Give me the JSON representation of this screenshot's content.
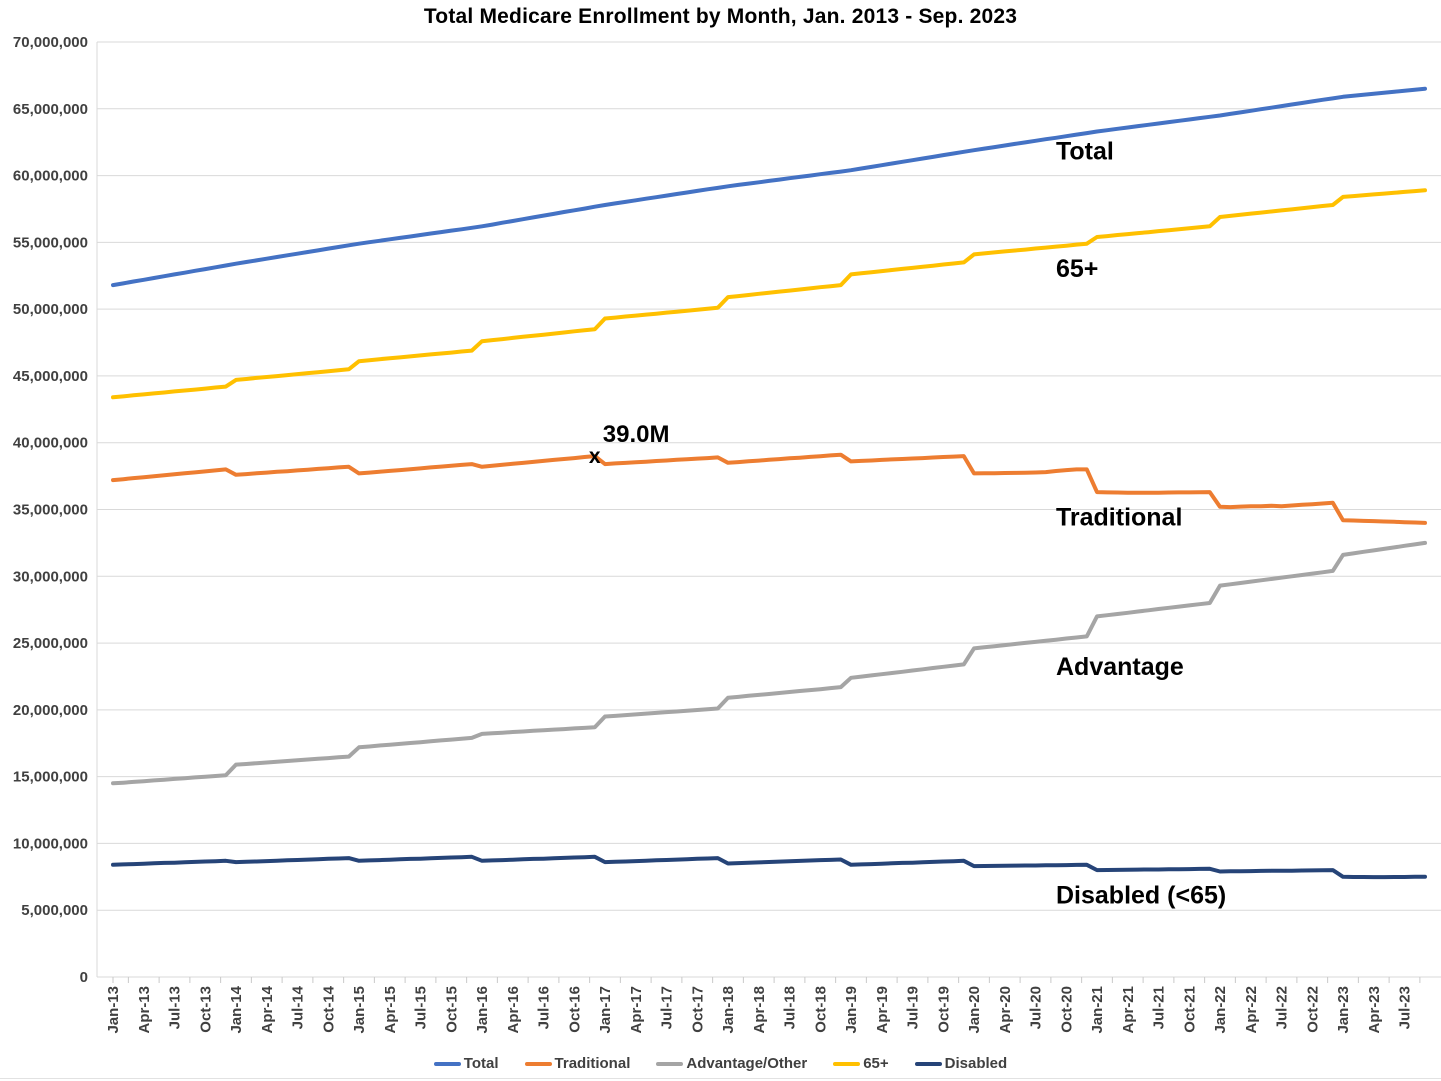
{
  "chart_data": {
    "type": "line",
    "title": "Total Medicare Enrollment by Month, Jan. 2013 - Sep. 2023",
    "values_unit": "millions",
    "x": {
      "start": "Jan-13",
      "end": "Sep-23",
      "frequency": "monthly",
      "points": 129
    },
    "x_tick_every_months": 3,
    "x_tick_labels": [
      "Jan-13",
      "Apr-13",
      "Jul-13",
      "Oct-13",
      "Jan-14",
      "Apr-14",
      "Jul-14",
      "Oct-14",
      "Jan-15",
      "Apr-15",
      "Jul-15",
      "Oct-15",
      "Jan-16",
      "Apr-16",
      "Jul-16",
      "Oct-16",
      "Jan-17",
      "Apr-17",
      "Jul-17",
      "Oct-17",
      "Jan-18",
      "Apr-18",
      "Jul-18",
      "Oct-18",
      "Jan-19",
      "Apr-19",
      "Jul-19",
      "Oct-19",
      "Jan-20",
      "Apr-20",
      "Jul-20",
      "Oct-20",
      "Jan-21",
      "Apr-21",
      "Jul-21",
      "Oct-21",
      "Jan-22",
      "Apr-22",
      "Jul-22",
      "Oct-22",
      "Jan-23",
      "Apr-23",
      "Jul-23"
    ],
    "ylim_millions": [
      0,
      70
    ],
    "ytick_step_millions": 5,
    "ytick_labels": [
      "0",
      "5,000,000",
      "10,000,000",
      "15,000,000",
      "20,000,000",
      "25,000,000",
      "30,000,000",
      "35,000,000",
      "40,000,000",
      "45,000,000",
      "50,000,000",
      "55,000,000",
      "60,000,000",
      "65,000,000",
      "70,000,000"
    ],
    "grid": "horizontal",
    "legend_position": "bottom",
    "colors": {
      "gridline": "#D9D9D9",
      "tick": "#C9C9C9",
      "axis_text": "#404040",
      "title_text": "#000000"
    },
    "series": [
      {
        "name": "Total",
        "color": "#4472C4",
        "values_millions": [
          51.8,
          51.93,
          52.07,
          52.2,
          52.33,
          52.47,
          52.6,
          52.73,
          52.87,
          53,
          53.13,
          53.27,
          53.4,
          53.53,
          53.65,
          53.78,
          53.9,
          54.03,
          54.15,
          54.28,
          54.4,
          54.53,
          54.65,
          54.78,
          54.9,
          55.01,
          55.12,
          55.23,
          55.33,
          55.44,
          55.55,
          55.66,
          55.77,
          55.88,
          55.98,
          56.09,
          56.2,
          56.33,
          56.47,
          56.6,
          56.73,
          56.87,
          57,
          57.13,
          57.27,
          57.4,
          57.53,
          57.67,
          57.8,
          57.92,
          58.03,
          58.15,
          58.27,
          58.38,
          58.5,
          58.62,
          58.73,
          58.85,
          58.97,
          59.08,
          59.2,
          59.3,
          59.4,
          59.5,
          59.6,
          59.7,
          59.8,
          59.9,
          60,
          60.1,
          60.2,
          60.3,
          60.4,
          60.53,
          60.65,
          60.78,
          60.9,
          61.03,
          61.15,
          61.28,
          61.4,
          61.53,
          61.65,
          61.78,
          61.9,
          62.02,
          62.13,
          62.25,
          62.37,
          62.48,
          62.6,
          62.72,
          62.83,
          62.95,
          63.07,
          63.18,
          63.3,
          63.4,
          63.5,
          63.6,
          63.7,
          63.8,
          63.9,
          64,
          64.1,
          64.2,
          64.3,
          64.4,
          64.5,
          64.62,
          64.73,
          64.85,
          64.97,
          65.08,
          65.2,
          65.32,
          65.43,
          65.55,
          65.67,
          65.78,
          65.9,
          65.98,
          66.05,
          66.13,
          66.2,
          66.28,
          66.35,
          66.43,
          66.5
        ]
      },
      {
        "name": "Traditional",
        "color": "#ED7D31",
        "values_millions": [
          37.2,
          37.27,
          37.35,
          37.42,
          37.49,
          37.56,
          37.64,
          37.71,
          37.78,
          37.85,
          37.93,
          38,
          37.6,
          37.65,
          37.71,
          37.76,
          37.82,
          37.87,
          37.93,
          37.98,
          38.04,
          38.09,
          38.15,
          38.2,
          37.7,
          37.76,
          37.83,
          37.89,
          37.95,
          38.02,
          38.08,
          38.15,
          38.21,
          38.27,
          38.34,
          38.4,
          38.2,
          38.27,
          38.35,
          38.42,
          38.49,
          38.56,
          38.64,
          38.71,
          38.78,
          38.85,
          38.93,
          39,
          38.4,
          38.45,
          38.49,
          38.54,
          38.58,
          38.63,
          38.67,
          38.72,
          38.76,
          38.81,
          38.85,
          38.9,
          38.5,
          38.55,
          38.61,
          38.66,
          38.72,
          38.77,
          38.83,
          38.88,
          38.94,
          38.99,
          39.05,
          39.1,
          38.6,
          38.64,
          38.67,
          38.71,
          38.75,
          38.78,
          38.82,
          38.85,
          38.89,
          38.93,
          38.96,
          39,
          37.7,
          37.71,
          37.72,
          37.73,
          37.74,
          37.75,
          37.77,
          37.8,
          37.88,
          37.95,
          38,
          38,
          36.3,
          36.28,
          36.27,
          36.25,
          36.25,
          36.25,
          36.26,
          36.27,
          36.28,
          36.28,
          36.29,
          36.3,
          35.2,
          35.18,
          35.22,
          35.25,
          35.25,
          35.28,
          35.25,
          35.3,
          35.35,
          35.4,
          35.45,
          35.5,
          34.2,
          34.18,
          34.15,
          34.13,
          34.1,
          34.08,
          34.05,
          34.03,
          34
        ]
      },
      {
        "name": "Advantage/Other",
        "color": "#A5A5A5",
        "values_millions": [
          14.5,
          14.55,
          14.61,
          14.66,
          14.72,
          14.77,
          14.83,
          14.88,
          14.94,
          14.99,
          15.05,
          15.1,
          15.9,
          15.95,
          16.01,
          16.06,
          16.12,
          16.17,
          16.23,
          16.28,
          16.34,
          16.39,
          16.45,
          16.5,
          17.2,
          17.26,
          17.33,
          17.39,
          17.45,
          17.52,
          17.58,
          17.65,
          17.71,
          17.77,
          17.84,
          17.9,
          18.2,
          18.25,
          18.29,
          18.34,
          18.38,
          18.43,
          18.47,
          18.52,
          18.56,
          18.61,
          18.65,
          18.7,
          19.5,
          19.55,
          19.61,
          19.66,
          19.72,
          19.77,
          19.83,
          19.88,
          19.94,
          19.99,
          20.05,
          20.1,
          20.9,
          20.97,
          21.05,
          21.12,
          21.19,
          21.26,
          21.34,
          21.41,
          21.48,
          21.55,
          21.63,
          21.7,
          22.4,
          22.49,
          22.58,
          22.67,
          22.76,
          22.85,
          22.95,
          23.04,
          23.13,
          23.22,
          23.31,
          23.4,
          24.6,
          24.68,
          24.76,
          24.85,
          24.93,
          25.01,
          25.09,
          25.17,
          25.25,
          25.34,
          25.42,
          25.5,
          27,
          27.09,
          27.18,
          27.27,
          27.36,
          27.45,
          27.55,
          27.64,
          27.73,
          27.82,
          27.91,
          28,
          29.3,
          29.4,
          29.5,
          29.6,
          29.7,
          29.8,
          29.9,
          30,
          30.1,
          30.2,
          30.3,
          30.4,
          31.6,
          31.71,
          31.83,
          31.94,
          32.05,
          32.16,
          32.28,
          32.39,
          32.5
        ]
      },
      {
        "name": "65+",
        "color": "#FFC000",
        "values_millions": [
          43.4,
          43.47,
          43.55,
          43.62,
          43.69,
          43.76,
          43.84,
          43.91,
          43.98,
          44.05,
          44.13,
          44.2,
          44.7,
          44.77,
          44.85,
          44.92,
          44.99,
          45.06,
          45.14,
          45.21,
          45.28,
          45.35,
          45.43,
          45.5,
          46.1,
          46.17,
          46.25,
          46.32,
          46.39,
          46.46,
          46.54,
          46.61,
          46.68,
          46.75,
          46.83,
          46.9,
          47.6,
          47.68,
          47.76,
          47.85,
          47.93,
          48.01,
          48.09,
          48.17,
          48.25,
          48.34,
          48.42,
          48.5,
          49.3,
          49.37,
          49.45,
          49.52,
          49.59,
          49.66,
          49.74,
          49.81,
          49.88,
          49.95,
          50.03,
          50.1,
          50.9,
          50.98,
          51.06,
          51.15,
          51.23,
          51.31,
          51.39,
          51.47,
          51.55,
          51.64,
          51.72,
          51.8,
          52.6,
          52.68,
          52.76,
          52.85,
          52.93,
          53.01,
          53.09,
          53.17,
          53.25,
          53.34,
          53.42,
          53.5,
          54.1,
          54.17,
          54.25,
          54.32,
          54.39,
          54.46,
          54.54,
          54.61,
          54.68,
          54.75,
          54.83,
          54.9,
          55.4,
          55.47,
          55.55,
          55.62,
          55.69,
          55.76,
          55.84,
          55.91,
          55.98,
          56.05,
          56.13,
          56.2,
          56.9,
          56.98,
          57.06,
          57.15,
          57.23,
          57.31,
          57.39,
          57.47,
          57.55,
          57.64,
          57.72,
          57.8,
          58.4,
          58.46,
          58.53,
          58.59,
          58.65,
          58.71,
          58.78,
          58.84,
          58.9
        ]
      },
      {
        "name": "Disabled",
        "color": "#264478",
        "values_millions": [
          8.4,
          8.43,
          8.45,
          8.48,
          8.51,
          8.54,
          8.56,
          8.59,
          8.62,
          8.65,
          8.67,
          8.7,
          8.6,
          8.63,
          8.65,
          8.68,
          8.71,
          8.74,
          8.76,
          8.79,
          8.82,
          8.85,
          8.87,
          8.9,
          8.7,
          8.73,
          8.75,
          8.78,
          8.81,
          8.84,
          8.86,
          8.89,
          8.92,
          8.95,
          8.97,
          9,
          8.7,
          8.73,
          8.75,
          8.78,
          8.81,
          8.84,
          8.86,
          8.89,
          8.92,
          8.95,
          8.97,
          9,
          8.6,
          8.63,
          8.65,
          8.68,
          8.71,
          8.74,
          8.76,
          8.79,
          8.82,
          8.85,
          8.87,
          8.9,
          8.5,
          8.53,
          8.55,
          8.58,
          8.61,
          8.64,
          8.66,
          8.69,
          8.72,
          8.75,
          8.77,
          8.8,
          8.4,
          8.43,
          8.45,
          8.48,
          8.51,
          8.54,
          8.56,
          8.59,
          8.62,
          8.65,
          8.67,
          8.7,
          8.3,
          8.31,
          8.32,
          8.33,
          8.34,
          8.35,
          8.35,
          8.36,
          8.37,
          8.38,
          8.39,
          8.4,
          8,
          8.01,
          8.02,
          8.03,
          8.04,
          8.05,
          8.05,
          8.06,
          8.07,
          8.08,
          8.09,
          8.1,
          7.9,
          7.91,
          7.92,
          7.93,
          7.94,
          7.95,
          7.95,
          7.96,
          7.97,
          7.98,
          7.99,
          8,
          7.5,
          7.49,
          7.49,
          7.48,
          7.48,
          7.49,
          7.49,
          7.5,
          7.5
        ]
      }
    ],
    "series_labels_on_chart": [
      {
        "text": "Total",
        "x_month_index": 92,
        "y_millions": 61.2
      },
      {
        "text": "65+",
        "x_month_index": 92,
        "y_millions": 52.4
      },
      {
        "text": "Traditional",
        "x_month_index": 92,
        "y_millions": 33.8
      },
      {
        "text": "Advantage",
        "x_month_index": 92,
        "y_millions": 22.6
      },
      {
        "text": "Disabled (<65)",
        "x_month_index": 92,
        "y_millions": 5.5
      }
    ],
    "annotation": {
      "marker": "x",
      "label": "39.0M",
      "series": "Traditional",
      "x_label": "Dec-16",
      "x_month_index": 47,
      "y_millions": 39.0
    }
  }
}
